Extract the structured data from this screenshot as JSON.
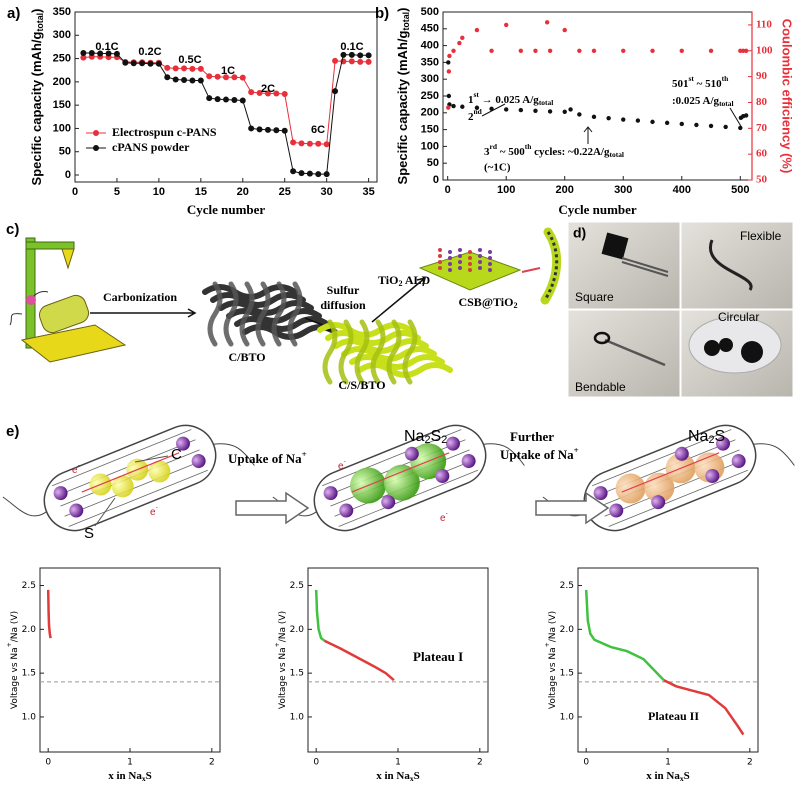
{
  "chart_data": [
    {
      "type": "line",
      "panel_label": "a)",
      "xlabel": "Cycle number",
      "ylabel": [
        {
          "t": "Specific capacity (mAh/g"
        },
        {
          "sub": "total"
        },
        {
          "t": ")"
        }
      ],
      "x": [
        1,
        2,
        3,
        4,
        5,
        6,
        7,
        8,
        9,
        10,
        11,
        12,
        13,
        14,
        15,
        16,
        17,
        18,
        19,
        20,
        21,
        22,
        23,
        24,
        25,
        26,
        27,
        28,
        29,
        30,
        31,
        32,
        33,
        34,
        35
      ],
      "series": [
        {
          "name": "Electrospun  c-PANS",
          "color": "#e8303a",
          "values": [
            252,
            254,
            254,
            253,
            253,
            243,
            242,
            242,
            241,
            241,
            230,
            229,
            229,
            228,
            228,
            212,
            211,
            210,
            210,
            209,
            178,
            176,
            175,
            175,
            174,
            70,
            68,
            67,
            67,
            66,
            245,
            244,
            244,
            243,
            243
          ]
        },
        {
          "name": "cPANS powder",
          "color": "#111111",
          "values": [
            262,
            262,
            261,
            261,
            260,
            241,
            240,
            240,
            239,
            239,
            210,
            205,
            204,
            203,
            203,
            165,
            163,
            162,
            161,
            160,
            100,
            98,
            97,
            96,
            95,
            8,
            4,
            3,
            2,
            2,
            180,
            258,
            258,
            257,
            257
          ]
        }
      ],
      "markers": true,
      "xlim": [
        0,
        36
      ],
      "xticks": [
        0,
        5,
        10,
        15,
        20,
        25,
        30,
        35
      ],
      "ylim": [
        -15,
        350
      ],
      "yticks": [
        0,
        50,
        100,
        150,
        200,
        250,
        300,
        350
      ],
      "annotations": [
        "0.1C",
        "0.2C",
        "0.5C",
        "1C",
        "2C",
        "6C",
        "0.1C"
      ],
      "legend": "lower left"
    },
    {
      "type": "scatter",
      "panel_label": "b)",
      "xlabel": "Cycle number",
      "ylabel": [
        {
          "t": "Specific capacity (mAh/g"
        },
        {
          "sub": "total"
        },
        {
          "t": ")"
        }
      ],
      "y2label": "Coulombic efficiency (%)",
      "series": [
        {
          "color": "#111111",
          "x": [
            1,
            2,
            3,
            10,
            25,
            50,
            75,
            100,
            125,
            150,
            175,
            200,
            210,
            225,
            250,
            275,
            300,
            325,
            350,
            375,
            400,
            425,
            450,
            475,
            500,
            501,
            505,
            510
          ],
          "values": [
            350,
            250,
            225,
            220,
            218,
            215,
            212,
            210,
            208,
            206,
            204,
            203,
            210,
            195,
            188,
            184,
            180,
            177,
            173,
            170,
            167,
            164,
            161,
            158,
            155,
            185,
            190,
            192
          ]
        },
        {
          "color": "#e8303a",
          "axis": "y2",
          "x": [
            1,
            2,
            3,
            10,
            20,
            25,
            50,
            75,
            100,
            125,
            150,
            170,
            175,
            200,
            225,
            250,
            300,
            350,
            400,
            450,
            500,
            505,
            510
          ],
          "values": [
            78,
            92,
            98,
            100,
            103,
            105,
            108,
            100,
            110,
            100,
            100,
            111,
            100,
            108,
            100,
            100,
            100,
            100,
            100,
            100,
            100,
            100,
            100
          ]
        }
      ],
      "xlim": [
        -8,
        520
      ],
      "xticks": [
        0,
        100,
        200,
        300,
        400,
        500
      ],
      "ylim": [
        0,
        500
      ],
      "yticks": [
        0,
        50,
        100,
        150,
        200,
        250,
        300,
        350,
        400,
        450,
        500
      ],
      "y2lim": [
        50,
        115
      ],
      "y2ticks": [
        50,
        60,
        70,
        80,
        90,
        100,
        110
      ],
      "annotations": [
        [
          {
            "t": "1"
          },
          {
            "sup": "st"
          },
          {
            "t": " → 0.025 A/g"
          },
          {
            "sub": "total"
          }
        ],
        [
          {
            "t": "2"
          },
          {
            "sup": "nd"
          }
        ],
        [
          {
            "t": "501"
          },
          {
            "sup": "st"
          },
          {
            "t": " ~ 510"
          },
          {
            "sup": "th"
          }
        ],
        [
          {
            "t": ":0.025 A/g"
          },
          {
            "sub": "total"
          }
        ],
        [
          {
            "t": "3"
          },
          {
            "sup": "rd"
          },
          {
            "t": " ~ 500"
          },
          {
            "sup": "th"
          },
          {
            "t": " cycles: ~0.22A/g"
          },
          {
            "sub": "total"
          }
        ],
        "(~1C)"
      ]
    },
    {
      "type": "line",
      "xlabel": [
        {
          "t": "x in Na"
        },
        {
          "sub": "x"
        },
        {
          "t": "S"
        }
      ],
      "ylabel": [
        {
          "t": "Voltage vs Na"
        },
        {
          "sup": "+"
        },
        {
          "t": "/Na (V)"
        }
      ],
      "series": [
        {
          "color": "#e23a3a",
          "x": [
            0,
            0.005,
            0.01,
            0.02,
            0.03
          ],
          "values": [
            2.45,
            2.2,
            2.05,
            1.95,
            1.9
          ]
        }
      ],
      "xlim": [
        -0.1,
        2.1
      ],
      "xticks": [
        0,
        1,
        2
      ],
      "ylim": [
        0.6,
        2.7
      ],
      "yticks": [
        {
          "value": 1,
          "label": "1.0"
        },
        1.5,
        {
          "value": 2,
          "label": "2.0"
        },
        2.5
      ],
      "ref_line": 1.4
    },
    {
      "type": "line",
      "xlabel": [
        {
          "t": "x in Na"
        },
        {
          "sub": "x"
        },
        {
          "t": "S"
        }
      ],
      "ylabel": [
        {
          "t": "Voltage vs Na"
        },
        {
          "sup": "+"
        },
        {
          "t": "/Na (V)"
        }
      ],
      "series": [
        {
          "color": "#3fc23f",
          "x": [
            0,
            0.01,
            0.03,
            0.06,
            0.1
          ],
          "values": [
            2.45,
            2.2,
            2.0,
            1.9,
            1.87
          ]
        },
        {
          "color": "#e23a3a",
          "x": [
            0.1,
            0.3,
            0.5,
            0.7,
            0.85,
            0.95
          ],
          "values": [
            1.87,
            1.78,
            1.68,
            1.58,
            1.5,
            1.42
          ]
        }
      ],
      "xlim": [
        -0.1,
        2.1
      ],
      "xticks": [
        0,
        1,
        2
      ],
      "ylim": [
        0.6,
        2.7
      ],
      "yticks": [
        {
          "value": 1,
          "label": "1.0"
        },
        1.5,
        {
          "value": 2,
          "label": "2.0"
        },
        2.5
      ],
      "ref_line": 1.4,
      "annotations": [
        "Plateau I"
      ]
    },
    {
      "type": "line",
      "xlabel": [
        {
          "t": "x in Na"
        },
        {
          "sub": "x"
        },
        {
          "t": "S"
        }
      ],
      "ylabel": [
        {
          "t": "Voltage vs Na"
        },
        {
          "sup": "+"
        },
        {
          "t": "/Na (V)"
        }
      ],
      "series": [
        {
          "color": "#3fc23f",
          "x": [
            0,
            0.02,
            0.05,
            0.1,
            0.3,
            0.5,
            0.7,
            0.95
          ],
          "values": [
            2.45,
            2.1,
            1.95,
            1.88,
            1.8,
            1.75,
            1.66,
            1.42
          ]
        },
        {
          "color": "#e23a3a",
          "x": [
            0.95,
            1.1,
            1.3,
            1.5,
            1.7,
            1.85,
            1.92
          ],
          "values": [
            1.42,
            1.35,
            1.3,
            1.25,
            1.1,
            0.9,
            0.8
          ]
        }
      ],
      "xlim": [
        -0.1,
        2.1
      ],
      "xticks": [
        0,
        1,
        2
      ],
      "ylim": [
        0.6,
        2.7
      ],
      "yticks": [
        {
          "value": 1,
          "label": "1.0"
        },
        1.5,
        {
          "value": 2,
          "label": "2.0"
        },
        2.5
      ],
      "ref_line": 1.4,
      "annotations": [
        "Plateau II"
      ]
    }
  ],
  "panel_c": {
    "label": "c)",
    "steps": [
      "Carbonization",
      "Sulfur",
      "diffusion"
    ],
    "tio2": [
      {
        "t": "TiO"
      },
      {
        "sub": "2"
      },
      {
        "t": " ALD"
      }
    ],
    "materials": [
      "C/BTO",
      "C/S/BTO"
    ],
    "product": [
      {
        "t": "CSB@TiO"
      },
      {
        "sub": "2"
      }
    ]
  },
  "panel_d": {
    "label": "d)",
    "photos": [
      "Square",
      "Flexible",
      "Bendable",
      "Circular"
    ]
  },
  "panel_e": {
    "label": "e)",
    "carbon": "C",
    "sulfur": "S",
    "electron": [
      {
        "t": "e"
      },
      {
        "sup": "-"
      }
    ],
    "step1": [
      {
        "t": "Uptake of Na"
      },
      {
        "sup": "+"
      }
    ],
    "further": "Further",
    "na2s2": [
      {
        "t": "Na"
      },
      {
        "sub": "2"
      },
      {
        "t": "S"
      },
      {
        "sub": "2"
      }
    ],
    "na2s": [
      {
        "t": "Na"
      },
      {
        "sub": "2"
      },
      {
        "t": "S"
      }
    ]
  }
}
